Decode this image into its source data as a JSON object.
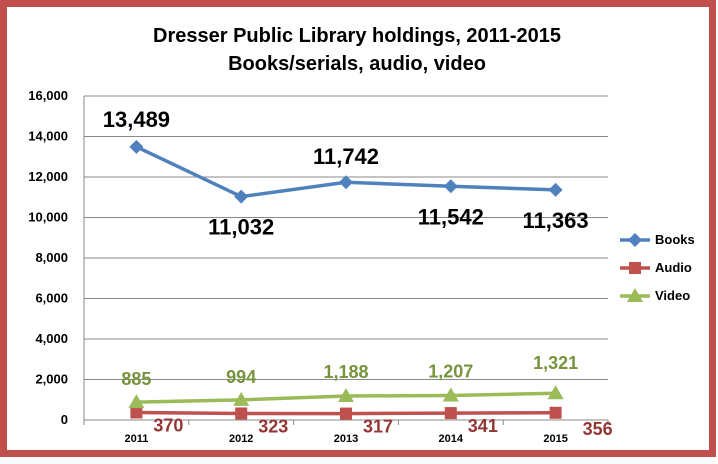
{
  "chart_data": {
    "type": "line",
    "title": "Dresser Public Library holdings, 2011-2015",
    "subtitle": "Books/serials, audio, video",
    "xlabel": "",
    "ylabel": "",
    "categories": [
      "2011",
      "2012",
      "2013",
      "2014",
      "2015"
    ],
    "ylim": [
      0,
      16000
    ],
    "yticks": [
      "0",
      "2,000",
      "4,000",
      "6,000",
      "8,000",
      "10,000",
      "12,000",
      "14,000",
      "16,000"
    ],
    "ytick_values": [
      0,
      2000,
      4000,
      6000,
      8000,
      10000,
      12000,
      14000,
      16000
    ],
    "grid": true,
    "legend_position": "right",
    "series": [
      {
        "name": "Books",
        "values": [
          13489,
          11032,
          11742,
          11542,
          11363
        ],
        "labels": [
          "13,489",
          "11,032",
          "11,742",
          "11,542",
          "11,363"
        ],
        "color": "#4f81bd",
        "label_color": "#000000",
        "marker": "diamond"
      },
      {
        "name": "Audio",
        "values": [
          370,
          323,
          317,
          341,
          356
        ],
        "labels": [
          "370",
          "323",
          "317",
          "341",
          "356"
        ],
        "color": "#c0504d",
        "label_color": "#943634",
        "marker": "square"
      },
      {
        "name": "Video",
        "values": [
          885,
          994,
          1188,
          1207,
          1321
        ],
        "labels": [
          "885",
          "994",
          "1,188",
          "1,207",
          "1,321"
        ],
        "color": "#9bbb59",
        "label_color": "#77933c",
        "marker": "triangle"
      }
    ]
  },
  "style": {
    "border_color": "#c0504d",
    "grid_color": "#888888"
  }
}
